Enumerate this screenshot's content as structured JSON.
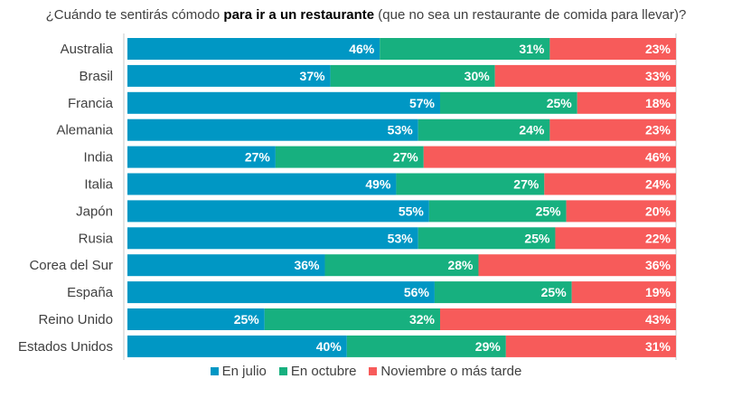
{
  "title": {
    "prefix": "¿Cuándo te sentirás cómodo ",
    "bold": "para ir a un restaurante",
    "suffix": " (que no sea un restaurante de comida para llevar)?"
  },
  "chart_data": {
    "type": "bar",
    "orientation": "horizontal",
    "stacked": true,
    "percent": true,
    "categories": [
      "Australia",
      "Brasil",
      "Francia",
      "Alemania",
      "India",
      "Italia",
      "Japón",
      "Rusia",
      "Corea del Sur",
      "España",
      "Reino Unido",
      "Estados Unidos"
    ],
    "series": [
      {
        "name": "En julio",
        "color": "#0097c4",
        "values": [
          46,
          37,
          57,
          53,
          27,
          49,
          55,
          53,
          36,
          56,
          25,
          40
        ]
      },
      {
        "name": "En octubre",
        "color": "#17b07f",
        "values": [
          31,
          30,
          25,
          24,
          27,
          27,
          25,
          25,
          28,
          25,
          32,
          29
        ]
      },
      {
        "name": "Noviembre o más tarde",
        "color": "#f75b5a",
        "values": [
          23,
          33,
          18,
          23,
          46,
          24,
          20,
          22,
          36,
          19,
          43,
          31
        ]
      }
    ],
    "legend_position": "bottom",
    "grid": false
  }
}
